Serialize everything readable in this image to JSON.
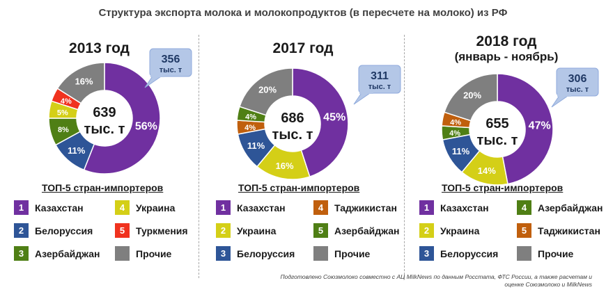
{
  "title": "Структура экспорта молока и молокопродуктов (в пересчете на молоко) из РФ",
  "top5_label": "ТОП-5 стран-импортеров",
  "source": "Подготовлено Союзмолоко совместно с АЦ MilkNews по данным Росстата, ФТС России, а также расчетам и оценке Союзмолоко и MilkNews",
  "colors": {
    "purple": "#7030a0",
    "navy": "#2e5597",
    "green": "#4f7f15",
    "yellow": "#d4cf17",
    "red": "#f0321e",
    "orange": "#c05f0d",
    "gray": "#7f7f7f",
    "callout_fill": "#b4c7e7"
  },
  "chart_data": [
    {
      "type": "pie",
      "title": "2013 год",
      "subtitle": "",
      "center": {
        "value": "639",
        "unit": "тыс. т"
      },
      "callout": {
        "value": "356",
        "unit": "тыс. т"
      },
      "slices": [
        {
          "name": "Казахстан",
          "value": 56,
          "label": "56%",
          "color": "#7030a0"
        },
        {
          "name": "Белоруссия",
          "value": 11,
          "label": "11%",
          "color": "#2e5597"
        },
        {
          "name": "Азербайджан",
          "value": 8,
          "label": "8%",
          "color": "#4f7f15"
        },
        {
          "name": "Украина",
          "value": 5,
          "label": "5%",
          "color": "#d4cf17"
        },
        {
          "name": "Туркмения",
          "value": 4,
          "label": "4%",
          "color": "#f0321e"
        },
        {
          "name": "Прочие",
          "value": 16,
          "label": "16%",
          "color": "#7f7f7f"
        }
      ],
      "legend": [
        {
          "num": "1",
          "name": "Казахстан",
          "color": "#7030a0"
        },
        {
          "num": "4",
          "name": "Украина",
          "color": "#d4cf17"
        },
        {
          "num": "2",
          "name": "Белоруссия",
          "color": "#2e5597"
        },
        {
          "num": "5",
          "name": "Туркмения",
          "color": "#f0321e"
        },
        {
          "num": "3",
          "name": "Азербайджан",
          "color": "#4f7f15"
        },
        {
          "num": "",
          "name": "Прочие",
          "color": "#7f7f7f"
        }
      ]
    },
    {
      "type": "pie",
      "title": "2017 год",
      "subtitle": "",
      "center": {
        "value": "686",
        "unit": "тыс. т"
      },
      "callout": {
        "value": "311",
        "unit": "тыс. т"
      },
      "slices": [
        {
          "name": "Казахстан",
          "value": 45,
          "label": "45%",
          "color": "#7030a0"
        },
        {
          "name": "Украина",
          "value": 16,
          "label": "16%",
          "color": "#d4cf17"
        },
        {
          "name": "Белоруссия",
          "value": 11,
          "label": "11%",
          "color": "#2e5597"
        },
        {
          "name": "Таджикистан",
          "value": 4,
          "label": "4%",
          "color": "#c05f0d"
        },
        {
          "name": "Азербайджан",
          "value": 4,
          "label": "4%",
          "color": "#4f7f15"
        },
        {
          "name": "Прочие",
          "value": 20,
          "label": "20%",
          "color": "#7f7f7f"
        }
      ],
      "legend": [
        {
          "num": "1",
          "name": "Казахстан",
          "color": "#7030a0"
        },
        {
          "num": "4",
          "name": "Таджикистан",
          "color": "#c05f0d"
        },
        {
          "num": "2",
          "name": "Украина",
          "color": "#d4cf17"
        },
        {
          "num": "5",
          "name": "Азербайджан",
          "color": "#4f7f15"
        },
        {
          "num": "3",
          "name": "Белоруссия",
          "color": "#2e5597"
        },
        {
          "num": "",
          "name": "Прочие",
          "color": "#7f7f7f"
        }
      ]
    },
    {
      "type": "pie",
      "title": "2018 год",
      "subtitle": "(январь - ноябрь)",
      "center": {
        "value": "655",
        "unit": "тыс. т"
      },
      "callout": {
        "value": "306",
        "unit": "тыс. т"
      },
      "slices": [
        {
          "name": "Казахстан",
          "value": 47,
          "label": "47%",
          "color": "#7030a0"
        },
        {
          "name": "Украина",
          "value": 14,
          "label": "14%",
          "color": "#d4cf17"
        },
        {
          "name": "Белоруссия",
          "value": 11,
          "label": "11%",
          "color": "#2e5597"
        },
        {
          "name": "Азербайджан",
          "value": 4,
          "label": "4%",
          "color": "#4f7f15"
        },
        {
          "name": "Таджикистан",
          "value": 4,
          "label": "4%",
          "color": "#c05f0d"
        },
        {
          "name": "Прочие",
          "value": 20,
          "label": "20%",
          "color": "#7f7f7f"
        }
      ],
      "legend": [
        {
          "num": "1",
          "name": "Казахстан",
          "color": "#7030a0"
        },
        {
          "num": "4",
          "name": "Азербайджан",
          "color": "#4f7f15"
        },
        {
          "num": "2",
          "name": "Украина",
          "color": "#d4cf17"
        },
        {
          "num": "5",
          "name": "Таджикистан",
          "color": "#c05f0d"
        },
        {
          "num": "3",
          "name": "Белоруссия",
          "color": "#2e5597"
        },
        {
          "num": "",
          "name": "Прочие",
          "color": "#7f7f7f"
        }
      ]
    }
  ]
}
